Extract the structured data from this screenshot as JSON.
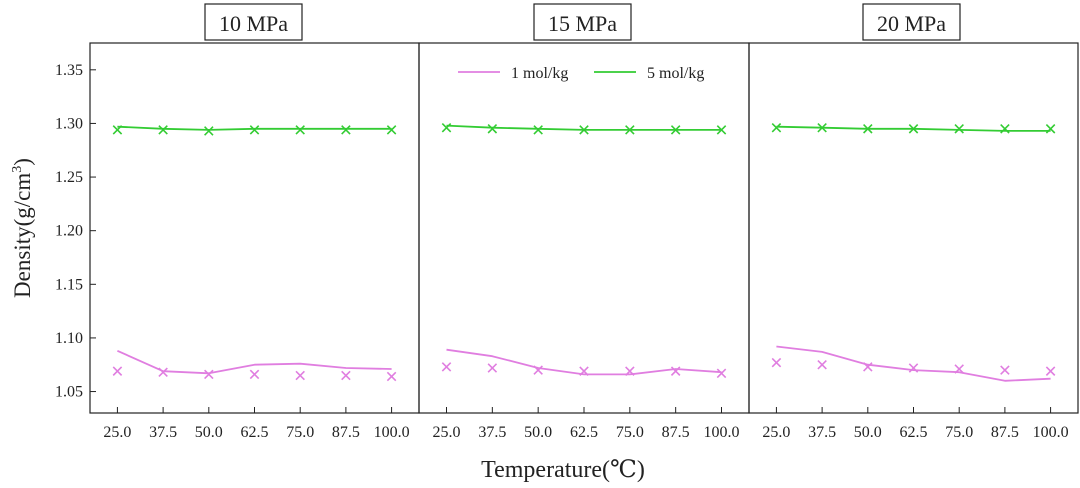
{
  "chart_data": {
    "type": "line",
    "ylabel_main": "Density(g/cm",
    "ylabel_sup": "3",
    "ylabel_close": ")",
    "xlabel": "Temperature(℃)",
    "ylim": [
      1.03,
      1.375
    ],
    "yticks": [
      1.05,
      1.1,
      1.15,
      1.2,
      1.25,
      1.3,
      1.35
    ],
    "ytick_labels": [
      "1.05",
      "1.10",
      "1.15",
      "1.20",
      "1.25",
      "1.30",
      "1.35"
    ],
    "x": [
      25.0,
      37.5,
      50.0,
      62.5,
      75.0,
      87.5,
      100.0
    ],
    "xtick_labels": [
      "25.0",
      "37.5",
      "50.0",
      "62.5",
      "75.0",
      "87.5",
      "100.0"
    ],
    "xlim": [
      17.5,
      107.5
    ],
    "legend": {
      "placement": "top of middle panel",
      "entries": [
        "1 mol/kg",
        "5 mol/kg"
      ]
    },
    "colors": {
      "1 mol/kg": "#e07ee0",
      "5 mol/kg": "#33cc33"
    },
    "panels": [
      {
        "title": "10 MPa",
        "series": [
          {
            "name": "1 mol/kg",
            "kind": "line",
            "values": [
              1.088,
              1.069,
              1.067,
              1.075,
              1.076,
              1.072,
              1.071
            ]
          },
          {
            "name": "1 mol/kg",
            "kind": "markers",
            "values": [
              1.069,
              1.068,
              1.066,
              1.066,
              1.065,
              1.065,
              1.064
            ]
          },
          {
            "name": "5 mol/kg",
            "kind": "line",
            "values": [
              1.297,
              1.295,
              1.294,
              1.295,
              1.295,
              1.295,
              1.295
            ]
          },
          {
            "name": "5 mol/kg",
            "kind": "markers",
            "values": [
              1.294,
              1.294,
              1.293,
              1.294,
              1.294,
              1.294,
              1.294
            ]
          }
        ]
      },
      {
        "title": "15 MPa",
        "series": [
          {
            "name": "1 mol/kg",
            "kind": "line",
            "values": [
              1.089,
              1.083,
              1.072,
              1.066,
              1.066,
              1.071,
              1.068
            ]
          },
          {
            "name": "1 mol/kg",
            "kind": "markers",
            "values": [
              1.073,
              1.072,
              1.07,
              1.069,
              1.069,
              1.069,
              1.067
            ]
          },
          {
            "name": "5 mol/kg",
            "kind": "line",
            "values": [
              1.298,
              1.296,
              1.295,
              1.294,
              1.294,
              1.294,
              1.294
            ]
          },
          {
            "name": "5 mol/kg",
            "kind": "markers",
            "values": [
              1.296,
              1.295,
              1.294,
              1.294,
              1.294,
              1.294,
              1.294
            ]
          }
        ]
      },
      {
        "title": "20 MPa",
        "series": [
          {
            "name": "1 mol/kg",
            "kind": "line",
            "values": [
              1.092,
              1.087,
              1.075,
              1.07,
              1.068,
              1.06,
              1.062
            ]
          },
          {
            "name": "1 mol/kg",
            "kind": "markers",
            "values": [
              1.077,
              1.075,
              1.073,
              1.072,
              1.071,
              1.07,
              1.069
            ]
          },
          {
            "name": "5 mol/kg",
            "kind": "line",
            "values": [
              1.297,
              1.296,
              1.295,
              1.295,
              1.294,
              1.293,
              1.293
            ]
          },
          {
            "name": "5 mol/kg",
            "kind": "markers",
            "values": [
              1.296,
              1.296,
              1.295,
              1.295,
              1.295,
              1.295,
              1.295
            ]
          }
        ]
      }
    ]
  }
}
